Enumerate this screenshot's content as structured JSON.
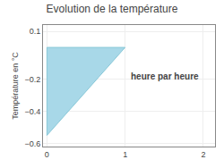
{
  "chart_data": {
    "type": "area",
    "title": "Evolution de la température",
    "ylabel": "Température en °C",
    "series": [
      {
        "type": "area",
        "color": "#a8d8e8",
        "x": [
          0,
          0,
          1
        ],
        "values": [
          0,
          -0.55,
          0
        ]
      },
      {
        "type": "line",
        "color": "#88c8d8",
        "x": [
          0,
          0,
          1,
          0
        ],
        "values": [
          0,
          -0.55,
          0,
          0
        ]
      }
    ],
    "annotations": [
      {
        "text": "heure par heure",
        "x": 1.05,
        "y": -0.18
      }
    ],
    "xlim": [
      -0.05,
      2.15
    ],
    "ylim": [
      -0.62,
      0.14
    ],
    "xticks": [
      0,
      1,
      2
    ],
    "yticks": [
      -0.6,
      -0.4,
      -0.2,
      0.1
    ],
    "grid": true
  }
}
